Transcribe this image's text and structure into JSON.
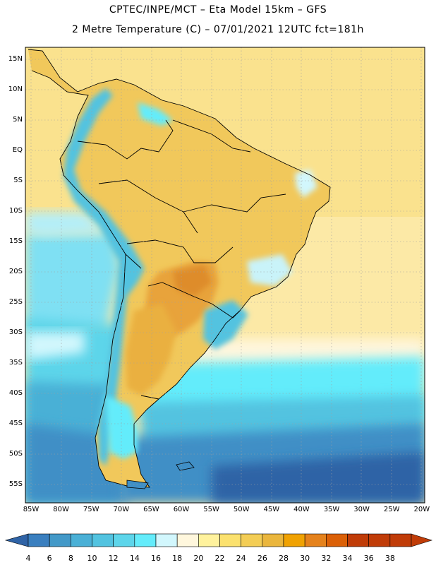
{
  "header": {
    "line1": "CPTEC/INPE/MCT –  Eta Model 15km – GFS",
    "line2": "2 Metre Temperature (C) – 07/01/2021 12UTC fct=181h"
  },
  "map": {
    "lat_labels": [
      "15N",
      "10N",
      "5N",
      "EQ",
      "5S",
      "10S",
      "15S",
      "20S",
      "25S",
      "30S",
      "35S",
      "40S",
      "45S",
      "50S",
      "55S"
    ],
    "lon_labels": [
      "85W",
      "80W",
      "75W",
      "70W",
      "65W",
      "60W",
      "55W",
      "50W",
      "45W",
      "40W",
      "35W",
      "30W",
      "25W",
      "20W"
    ],
    "field_colors": {
      "warm_sea": "#fbe7a3",
      "tropical_land": "#f2c95a",
      "hot_core": "#e4962d",
      "cool_sea": "#88e3f4",
      "cold_sea": "#3f8fc6",
      "andes_cold": "#4fc1de"
    }
  },
  "colorbar": {
    "labels": [
      "4",
      "6",
      "8",
      "10",
      "12",
      "14",
      "16",
      "18",
      "20",
      "22",
      "24",
      "26",
      "28",
      "30",
      "32",
      "34",
      "36",
      "38"
    ],
    "colors": [
      "#2f63a6",
      "#3a7fbf",
      "#4399c8",
      "#4ab0d6",
      "#52c3e0",
      "#5dd5ea",
      "#64ecfb",
      "#d2f7fd",
      "#fff7dd",
      "#fff29d",
      "#fbe16e",
      "#f3cd55",
      "#eab63d",
      "#f0a202",
      "#e5821c",
      "#db6007",
      "#c03c08",
      "#c03c08",
      "#c03c08"
    ]
  }
}
